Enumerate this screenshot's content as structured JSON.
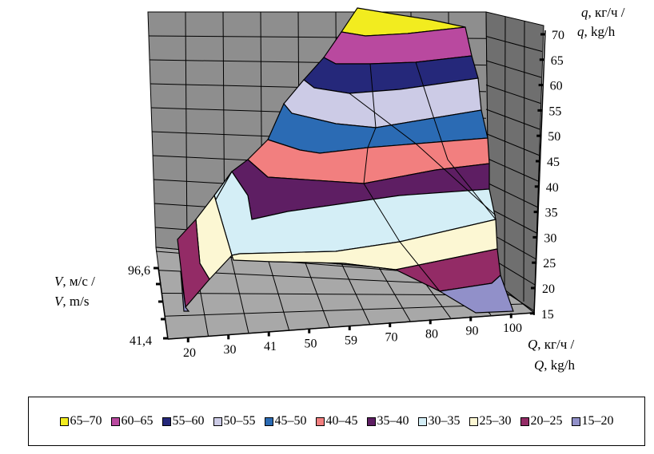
{
  "chart_data": {
    "type": "surface",
    "title": "",
    "z_axis": {
      "label_ru": ", кг/ч /",
      "label_en": ", kg/h",
      "symbol": "q",
      "ticks": [
        70,
        65,
        60,
        55,
        50,
        45,
        40,
        35,
        30,
        25,
        20,
        15
      ],
      "range": [
        15,
        70
      ]
    },
    "x_axis": {
      "label_ru": ", кг/ч /",
      "label_en": ", kg/h",
      "symbol": "Q",
      "ticks": [
        "20",
        "30",
        "41",
        "50",
        "59",
        "70",
        "80",
        "90",
        "100"
      ]
    },
    "y_axis": {
      "label_ru": ", м/с /",
      "label_en": ", m/s",
      "symbol": "V",
      "ticks": [
        "96,6",
        "41,4"
      ]
    },
    "grid": true,
    "legend_position": "bottom",
    "legend": [
      {
        "label": "65–70",
        "color": "#f2ec1f"
      },
      {
        "label": "60–65",
        "color": "#b9499f"
      },
      {
        "label": "55–60",
        "color": "#25287a"
      },
      {
        "label": "50–55",
        "color": "#cccbe6"
      },
      {
        "label": "45–50",
        "color": "#2b6bb4"
      },
      {
        "label": "40–45",
        "color": "#f27f7f"
      },
      {
        "label": "35–40",
        "color": "#5e1e63"
      },
      {
        "label": "30–35",
        "color": "#d4eef6"
      },
      {
        "label": "25–30",
        "color": "#fcf7d3"
      },
      {
        "label": "20–25",
        "color": "#932b66"
      },
      {
        "label": "15–20",
        "color": "#9190c9"
      }
    ]
  }
}
